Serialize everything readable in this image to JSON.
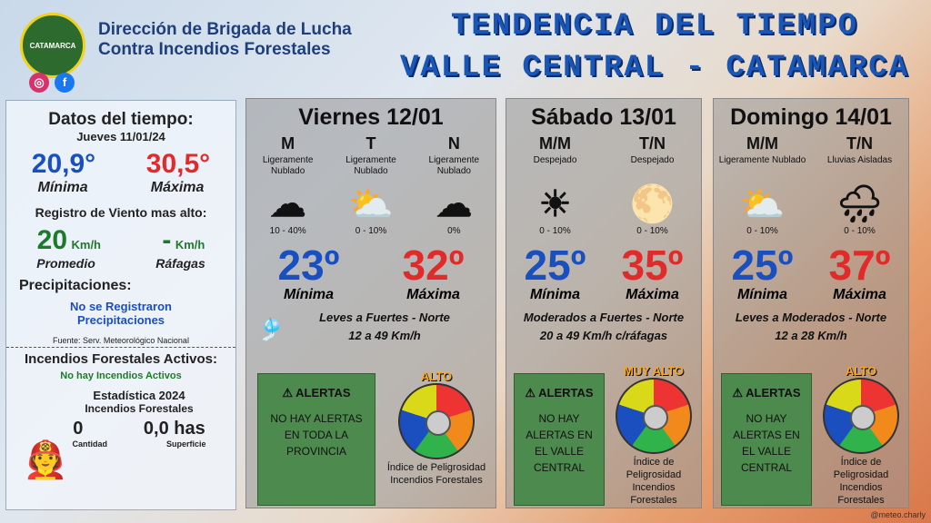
{
  "header": {
    "org_line1": "Dirección de Brigada de Lucha",
    "org_line2": "Contra Incendios Forestales",
    "title_line1": "TENDENCIA DEL TIEMPO",
    "title_line2": "VALLE CENTRAL - CATAMARCA",
    "logo_text": "CATAMARCA"
  },
  "left": {
    "title": "Datos del tiempo:",
    "date": "Jueves 11/01/24",
    "min": "20,9°",
    "max": "30,5°",
    "min_label": "Mínima",
    "max_label": "Máxima",
    "wind_title": "Registro de Viento mas alto:",
    "wind_avg": "20",
    "wind_unit": "Km/h",
    "gust": "-",
    "gust_unit": "Km/h",
    "avg_label": "Promedio",
    "gust_label": "Ráfagas",
    "precip_title": "Precipitaciones:",
    "precip_text": "No se Registraron Precipitaciones",
    "source": "Fuente: Serv. Meteorológico Nacional",
    "fires_title": "Incendios Forestales Activos:",
    "fires_text": "No hay Incendios Activos",
    "stats_title": "Estadística 2024",
    "stats_sub": "Incendios Forestales",
    "count": "0",
    "count_label": "Cantidad",
    "area": "0,0 has",
    "area_label": "Superficie"
  },
  "days": [
    {
      "name": "Viernes 12/01",
      "periods": [
        {
          "p": "M",
          "c": "Ligeramente Nublado",
          "pct": "10 - 40%"
        },
        {
          "p": "T",
          "c": "Ligeramente Nublado",
          "pct": "0 - 10%"
        },
        {
          "p": "N",
          "c": "Ligeramente Nublado",
          "pct": "0%"
        }
      ],
      "min": "23º",
      "max": "32º",
      "min_label": "Mínima",
      "max_label": "Máxima",
      "wind1": "Leves a Fuertes - Norte",
      "wind2": "12 a 49 Km/h",
      "alert_title": "ALERTAS",
      "alert_text": "NO HAY ALERTAS EN TODA LA PROVINCIA",
      "risk": "ALTO",
      "risk_text": "Índice de Peligrosidad Incendios Forestales"
    },
    {
      "name": "Sábado 13/01",
      "periods": [
        {
          "p": "M/M",
          "c": "Despejado",
          "pct": "0 - 10%"
        },
        {
          "p": "T/N",
          "c": "Despejado",
          "pct": "0 - 10%"
        }
      ],
      "min": "25º",
      "max": "35º",
      "min_label": "Mínima",
      "max_label": "Máxima",
      "wind1": "Moderados a Fuertes - Norte",
      "wind2": "20 a 49 Km/h c/ráfagas",
      "alert_title": "ALERTAS",
      "alert_text": "NO HAY ALERTAS EN EL VALLE CENTRAL",
      "risk": "MUY ALTO",
      "risk_text": "Índice de Peligrosidad Incendios Forestales"
    },
    {
      "name": "Domingo 14/01",
      "periods": [
        {
          "p": "M/M",
          "c": "Ligeramente Nublado",
          "pct": "0 - 10%"
        },
        {
          "p": "T/N",
          "c": "Lluvias Aisladas",
          "pct": "0 - 10%"
        }
      ],
      "min": "25º",
      "max": "37º",
      "min_label": "Mínima",
      "max_label": "Máxima",
      "wind1": "Leves a Moderados - Norte",
      "wind2": "12 a 28 Km/h",
      "alert_title": "ALERTAS",
      "alert_text": "NO HAY ALERTAS EN EL VALLE CENTRAL",
      "risk": "ALTO",
      "risk_text": "Índice de Peligrosidad Incendios Forestales"
    }
  ],
  "credit": "@meteo.charly",
  "colors": {
    "blue": "#1a4fbf",
    "red": "#e12b2b",
    "green": "#1d7a2a",
    "alert_bg": "#4d8a4d"
  }
}
